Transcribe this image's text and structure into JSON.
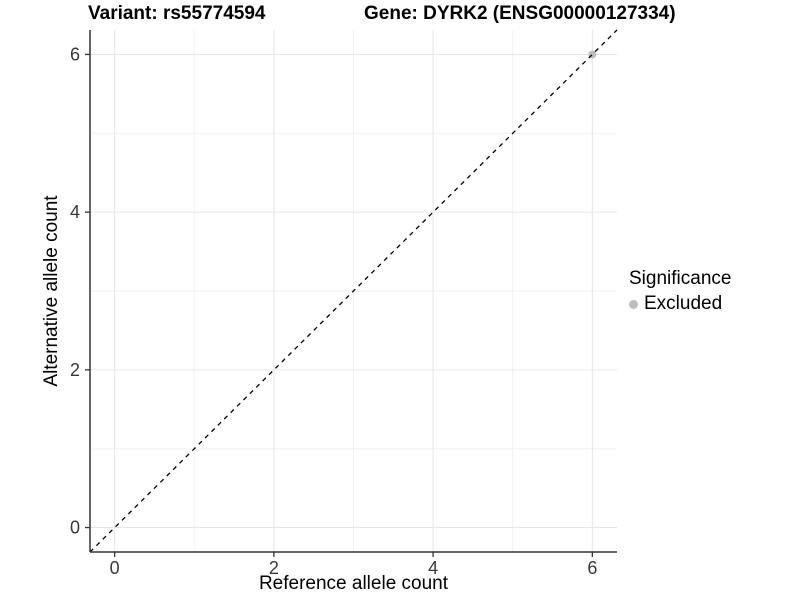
{
  "chart_data": {
    "type": "scatter",
    "titles": {
      "left": "Variant: rs55774594",
      "right": "Gene: DYRK2 (ENSG00000127334)"
    },
    "xlabel": "Reference allele count",
    "ylabel": "Alternative allele count",
    "xlim": [
      -0.31,
      6.31
    ],
    "ylim": [
      -0.31,
      6.31
    ],
    "xticks": [
      0,
      2,
      4,
      6
    ],
    "yticks": [
      0,
      2,
      4,
      6
    ],
    "xticks_minor": [
      1,
      3,
      5
    ],
    "yticks_minor": [
      1,
      3,
      5
    ],
    "grid": "major+minor",
    "identity_line": {
      "style": "dashed",
      "slope": 1,
      "intercept": 0,
      "color": "#000000"
    },
    "series": [
      {
        "name": "Excluded",
        "color": "#bebebe",
        "marker": "circle",
        "points": [
          [
            6,
            6
          ]
        ]
      }
    ],
    "legend": {
      "title": "Significance",
      "position": "right",
      "entries": [
        {
          "label": "Excluded",
          "color": "#bebebe"
        }
      ]
    },
    "colors": {
      "grid_major": "#e6e6e6",
      "grid_minor": "#f2f2f2",
      "axis": "#333333",
      "tick_label": "#383838",
      "background": "#ffffff"
    }
  }
}
